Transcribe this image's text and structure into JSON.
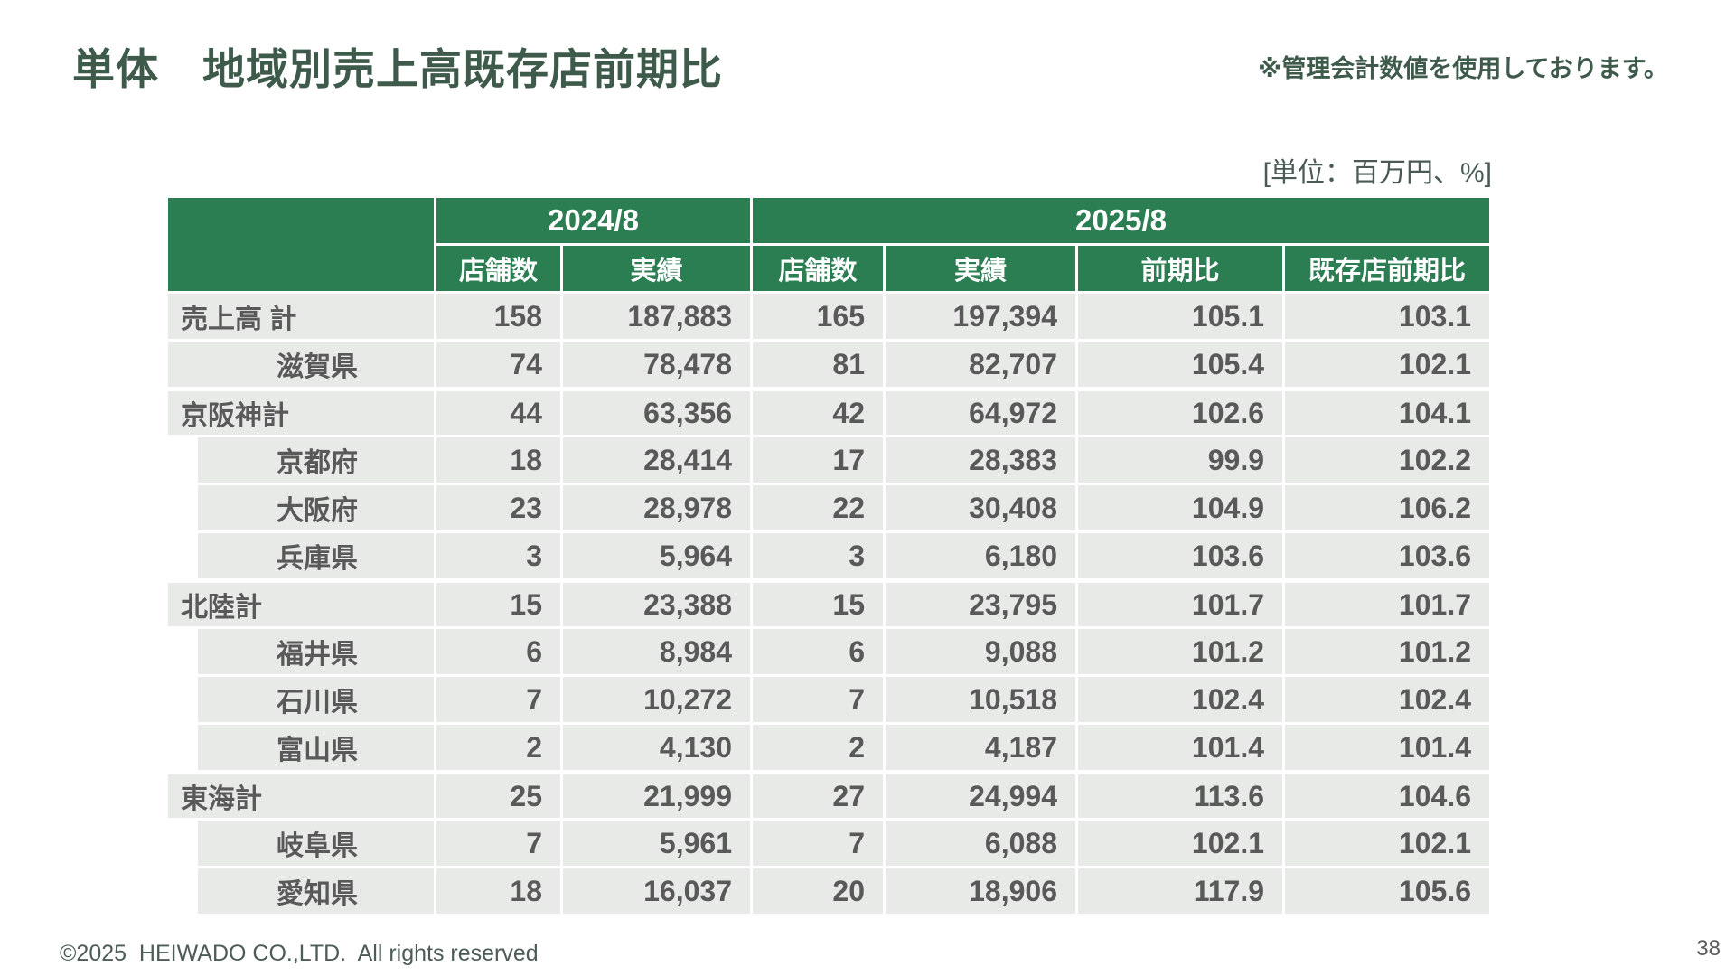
{
  "page": {
    "title": "単体　地域別売上高既存店前期比",
    "note": "※管理会計数値を使用しております。",
    "unit_label": "[単位：百万円、%]",
    "footer": "©2025  HEIWADO CO.,LTD.  All rights reserved",
    "page_number": "38"
  },
  "colors": {
    "header_green": "#2b7d52",
    "title_green": "#3d5a4a",
    "cell_gray": "#e7eae6",
    "text_gray": "#595959"
  },
  "table": {
    "col_groups": [
      {
        "label": "2024/8",
        "span": 2
      },
      {
        "label": "2025/8",
        "span": 4
      }
    ],
    "col_headers": [
      "店舗数",
      "実績",
      "店舗数",
      "実績",
      "前期比",
      "既存店前期比"
    ],
    "rows": [
      {
        "label": "売上高 計",
        "level": "total",
        "group_start": false,
        "values": [
          "158",
          "187,883",
          "165",
          "197,394",
          "105.1",
          "103.1"
        ]
      },
      {
        "label": "滋賀県",
        "level": "pref_noindent",
        "group_start": false,
        "values": [
          "74",
          "78,478",
          "81",
          "82,707",
          "105.4",
          "102.1"
        ]
      },
      {
        "label": "京阪神計",
        "level": "region",
        "group_start": true,
        "values": [
          "44",
          "63,356",
          "42",
          "64,972",
          "102.6",
          "104.1"
        ]
      },
      {
        "label": "京都府",
        "level": "pref",
        "group_start": false,
        "values": [
          "18",
          "28,414",
          "17",
          "28,383",
          "99.9",
          "102.2"
        ]
      },
      {
        "label": "大阪府",
        "level": "pref",
        "group_start": false,
        "values": [
          "23",
          "28,978",
          "22",
          "30,408",
          "104.9",
          "106.2"
        ]
      },
      {
        "label": "兵庫県",
        "level": "pref",
        "group_start": false,
        "values": [
          "3",
          "5,964",
          "3",
          "6,180",
          "103.6",
          "103.6"
        ]
      },
      {
        "label": "北陸計",
        "level": "region",
        "group_start": true,
        "values": [
          "15",
          "23,388",
          "15",
          "23,795",
          "101.7",
          "101.7"
        ]
      },
      {
        "label": "福井県",
        "level": "pref",
        "group_start": false,
        "values": [
          "6",
          "8,984",
          "6",
          "9,088",
          "101.2",
          "101.2"
        ]
      },
      {
        "label": "石川県",
        "level": "pref",
        "group_start": false,
        "values": [
          "7",
          "10,272",
          "7",
          "10,518",
          "102.4",
          "102.4"
        ]
      },
      {
        "label": "富山県",
        "level": "pref",
        "group_start": false,
        "values": [
          "2",
          "4,130",
          "2",
          "4,187",
          "101.4",
          "101.4"
        ]
      },
      {
        "label": "東海計",
        "level": "region",
        "group_start": true,
        "values": [
          "25",
          "21,999",
          "27",
          "24,994",
          "113.6",
          "104.6"
        ]
      },
      {
        "label": "岐阜県",
        "level": "pref",
        "group_start": false,
        "values": [
          "7",
          "5,961",
          "7",
          "6,088",
          "102.1",
          "102.1"
        ]
      },
      {
        "label": "愛知県",
        "level": "pref",
        "group_start": false,
        "values": [
          "18",
          "16,037",
          "20",
          "18,906",
          "117.9",
          "105.6"
        ]
      }
    ]
  }
}
